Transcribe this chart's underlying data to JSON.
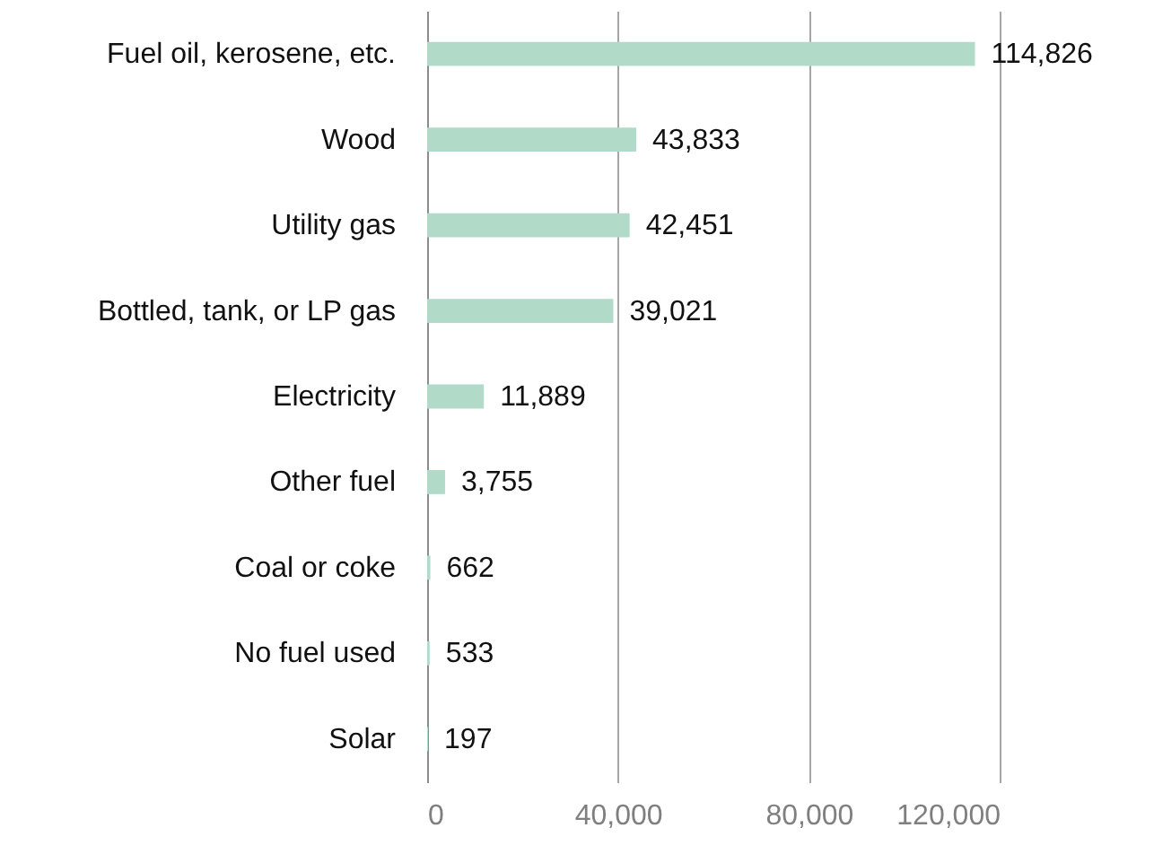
{
  "chart_data": {
    "type": "bar",
    "orientation": "horizontal",
    "categories": [
      "Fuel oil, kerosene, etc.",
      "Wood",
      "Utility gas",
      "Bottled, tank, or LP gas",
      "Electricity",
      "Other fuel",
      "Coal or coke",
      "No fuel used",
      "Solar"
    ],
    "values": [
      114826,
      43833,
      42451,
      39021,
      11889,
      3755,
      662,
      533,
      197
    ],
    "value_labels": [
      "114,826",
      "43,833",
      "42,451",
      "39,021",
      "11,889",
      "3,755",
      "662",
      "533",
      "197"
    ],
    "color": "#b1dbc8",
    "xlim": [
      0,
      120000
    ],
    "xticks": [
      0,
      {
        "value": 40000,
        "label": "40,000"
      },
      {
        "value": 80000,
        "label": "80,000"
      },
      {
        "value": 120000,
        "label": "120,000"
      }
    ],
    "grid": "x"
  }
}
